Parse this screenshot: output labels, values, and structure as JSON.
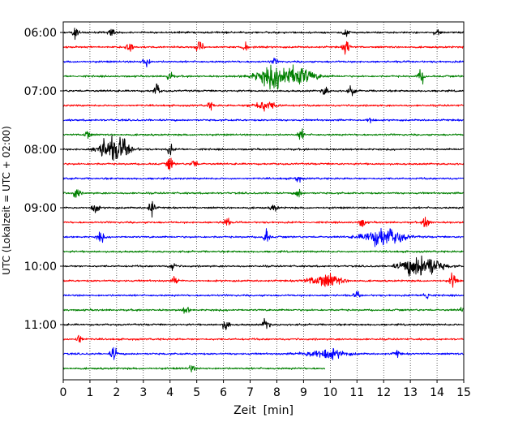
{
  "chart_data": {
    "type": "line",
    "title": "",
    "xlabel": "Zeit  [min]",
    "ylabel": "UTC (Lokalzeit = UTC + 02:00)",
    "xlim": [
      0,
      15
    ],
    "x_ticks": [
      "0",
      "1",
      "2",
      "3",
      "4",
      "5",
      "6",
      "7",
      "8",
      "9",
      "10",
      "11",
      "12",
      "13",
      "14",
      "15"
    ],
    "y_tick_labels": [
      "06:00",
      "07:00",
      "08:00",
      "09:00",
      "10:00",
      "11:00"
    ],
    "grid": "vertical-dotted",
    "colors": [
      "#000000",
      "#ff0000",
      "#0000ff",
      "#008000"
    ],
    "trace_length_min_last": 9.8,
    "traces": [
      {
        "start": "06:00",
        "color": "#000000",
        "events": [
          [
            0.45,
            1
          ],
          [
            1.8,
            0.9
          ],
          [
            10.6,
            0.8
          ],
          [
            14.0,
            0.6
          ]
        ]
      },
      {
        "start": "06:15",
        "color": "#ff0000",
        "events": [
          [
            2.5,
            1.3
          ],
          [
            5.1,
            1.1
          ],
          [
            6.8,
            0.8
          ],
          [
            10.6,
            1.5
          ]
        ]
      },
      {
        "start": "06:30",
        "color": "#0000ff",
        "events": [
          [
            3.1,
            1.2
          ],
          [
            7.9,
            0.5
          ]
        ]
      },
      {
        "start": "06:45",
        "color": "#008000",
        "events": [
          [
            4.0,
            0.9
          ],
          [
            8.3,
            3.0,
            0.6
          ],
          [
            13.4,
            1.2
          ]
        ]
      },
      {
        "start": "07:00",
        "color": "#000000",
        "events": [
          [
            3.5,
            1.2
          ],
          [
            9.8,
            0.8
          ],
          [
            10.8,
            0.8
          ]
        ]
      },
      {
        "start": "07:15",
        "color": "#ff0000",
        "events": [
          [
            5.5,
            0.6
          ],
          [
            7.5,
            0.8,
            0.3
          ]
        ]
      },
      {
        "start": "07:30",
        "color": "#0000ff",
        "events": [
          [
            11.5,
            0.7
          ]
        ]
      },
      {
        "start": "07:45",
        "color": "#008000",
        "events": [
          [
            0.9,
            0.9
          ],
          [
            8.9,
            0.9
          ]
        ]
      },
      {
        "start": "08:00",
        "color": "#000000",
        "events": [
          [
            1.9,
            3.2,
            0.35
          ],
          [
            4.0,
            0.8
          ]
        ]
      },
      {
        "start": "08:15",
        "color": "#ff0000",
        "events": [
          [
            4.0,
            1.3
          ],
          [
            4.9,
            0.8
          ]
        ]
      },
      {
        "start": "08:30",
        "color": "#0000ff",
        "events": [
          [
            8.8,
            0.6
          ]
        ]
      },
      {
        "start": "08:45",
        "color": "#008000",
        "events": [
          [
            0.5,
            1.2
          ],
          [
            8.8,
            0.9
          ]
        ]
      },
      {
        "start": "09:00",
        "color": "#000000",
        "events": [
          [
            1.2,
            1.1
          ],
          [
            3.3,
            1.5
          ],
          [
            7.9,
            0.7
          ]
        ]
      },
      {
        "start": "09:15",
        "color": "#ff0000",
        "events": [
          [
            6.1,
            0.9
          ],
          [
            11.2,
            0.8
          ],
          [
            13.6,
            1.4
          ]
        ]
      },
      {
        "start": "09:30",
        "color": "#0000ff",
        "events": [
          [
            1.4,
            1.0
          ],
          [
            7.6,
            1.3
          ],
          [
            12.0,
            1.6,
            0.5
          ]
        ]
      },
      {
        "start": "09:45",
        "color": "#008000",
        "events": []
      },
      {
        "start": "10:00",
        "color": "#000000",
        "events": [
          [
            4.1,
            0.7
          ],
          [
            13.4,
            2.5,
            0.45
          ]
        ]
      },
      {
        "start": "10:15",
        "color": "#ff0000",
        "events": [
          [
            4.2,
            0.7
          ],
          [
            9.8,
            1.2,
            0.4
          ],
          [
            14.6,
            1.4
          ]
        ]
      },
      {
        "start": "10:30",
        "color": "#0000ff",
        "events": [
          [
            11.0,
            0.6
          ],
          [
            13.6,
            1.0
          ]
        ]
      },
      {
        "start": "10:45",
        "color": "#008000",
        "events": [
          [
            4.6,
            0.7
          ],
          [
            15.0,
            0.7
          ]
        ]
      },
      {
        "start": "11:00",
        "color": "#000000",
        "events": [
          [
            6.1,
            1.2
          ],
          [
            7.6,
            1.3
          ]
        ]
      },
      {
        "start": "11:15",
        "color": "#ff0000",
        "events": [
          [
            0.6,
            0.9
          ]
        ]
      },
      {
        "start": "11:30",
        "color": "#0000ff",
        "events": [
          [
            1.9,
            1.3
          ],
          [
            9.8,
            0.9,
            0.5
          ],
          [
            12.5,
            0.6
          ]
        ]
      },
      {
        "start": "11:45",
        "color": "#008000",
        "events": [
          [
            4.8,
            0.6
          ]
        ]
      }
    ]
  }
}
